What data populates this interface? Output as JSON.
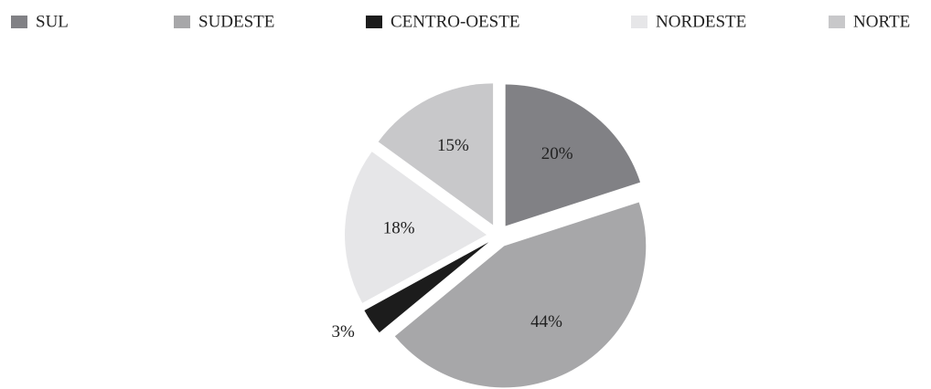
{
  "chart_data": {
    "type": "pie",
    "categories": [
      "SUL",
      "SUDESTE",
      "CENTRO-OESTE",
      "NORDESTE",
      "NORTE"
    ],
    "values": [
      20,
      44,
      3,
      18,
      15
    ],
    "value_labels": [
      "20%",
      "44%",
      "3%",
      "18%",
      "15%"
    ],
    "colors": [
      "#818185",
      "#a7a7a9",
      "#1c1c1c",
      "#e6e6e8",
      "#c8c8ca"
    ],
    "legend": "top"
  }
}
